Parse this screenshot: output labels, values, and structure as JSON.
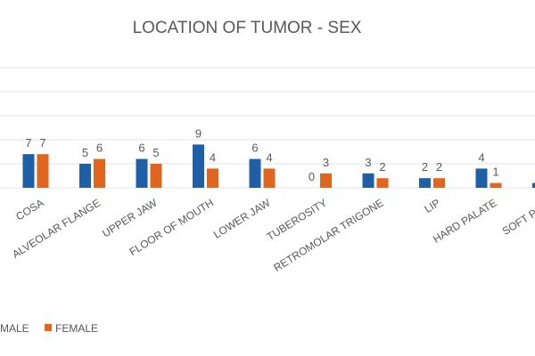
{
  "chart_data": {
    "type": "bar",
    "title": "LOCATION OF TUMOR - SEX",
    "categories": [
      "COSA",
      "ALVEOLAR FLANGE",
      "UPPER JAW",
      "FLOOR OF MOUTH",
      "LOWER JAW",
      "TUBEROSITY",
      "RETROMOLAR TRIGONE",
      "LIP",
      "HARD PALATE",
      "SOFT PALA"
    ],
    "series": [
      {
        "name": "MALE",
        "color": "#1f5fa8",
        "values": [
          7,
          5,
          6,
          9,
          6,
          0,
          3,
          2,
          4,
          1
        ]
      },
      {
        "name": "FEMALE",
        "color": "#e0651e",
        "values": [
          7,
          6,
          5,
          4,
          4,
          3,
          2,
          2,
          1,
          null
        ]
      }
    ],
    "ylim": [
      0,
      25
    ],
    "yticks": [
      0,
      5,
      10,
      15,
      20,
      25
    ],
    "grid": true,
    "legend": "bottom-left"
  }
}
